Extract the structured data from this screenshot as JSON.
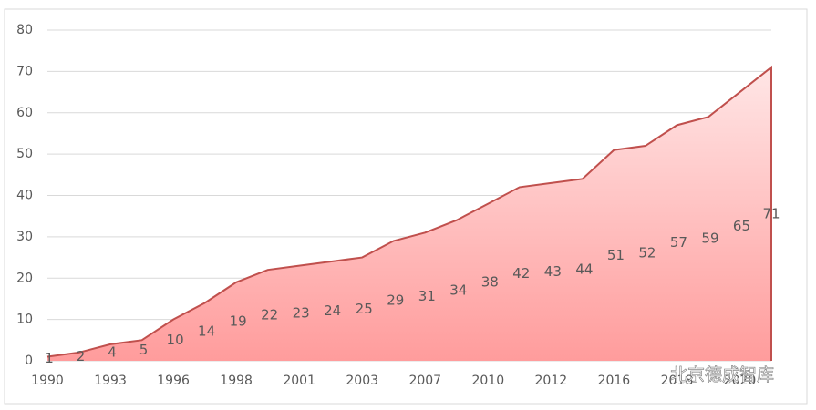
{
  "chart_data": {
    "type": "area",
    "categories": [
      "1990",
      null,
      "1993",
      null,
      "1996",
      null,
      "1998",
      null,
      "2001",
      null,
      "2003",
      null,
      "2007",
      null,
      "2010",
      null,
      "2012",
      null,
      "2016",
      null,
      "2018",
      null,
      "2020",
      null
    ],
    "values": [
      1,
      2,
      4,
      5,
      10,
      14,
      19,
      22,
      23,
      24,
      25,
      29,
      31,
      34,
      38,
      42,
      43,
      44,
      51,
      52,
      57,
      59,
      65,
      71
    ],
    "color": "#c0504d",
    "ylim": [
      0,
      80
    ],
    "yticks": [
      0,
      10,
      20,
      30,
      40,
      50,
      60,
      70,
      80
    ],
    "grid": true,
    "watermark": "北京德成智库"
  }
}
